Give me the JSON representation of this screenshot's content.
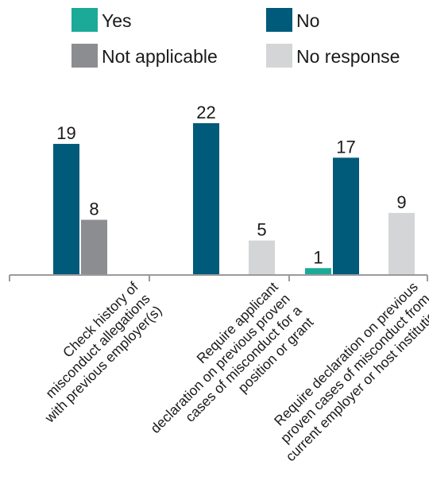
{
  "chart_data": {
    "type": "bar",
    "categories": [
      [
        "Check history of",
        "misconduct allegations",
        "with previous employer(s)"
      ],
      [
        "Require applicant",
        "declaration on previous proven",
        "cases of misconduct for a",
        "position or grant"
      ],
      [
        "Require declaration on previous",
        "proven cases of misconduct from",
        "current employer or host institution"
      ]
    ],
    "series": [
      {
        "name": "Yes",
        "color": "#1aaa97",
        "values": [
          null,
          null,
          1
        ]
      },
      {
        "name": "No",
        "color": "#005a7a",
        "values": [
          19,
          22,
          17
        ]
      },
      {
        "name": "Not applicable",
        "color": "#8c8d90",
        "values": [
          8,
          null,
          null
        ]
      },
      {
        "name": "No response",
        "color": "#d4d5d6",
        "values": [
          null,
          5,
          9
        ]
      }
    ],
    "ylim": [
      0,
      22
    ],
    "grid": false,
    "legend_position": "top"
  }
}
